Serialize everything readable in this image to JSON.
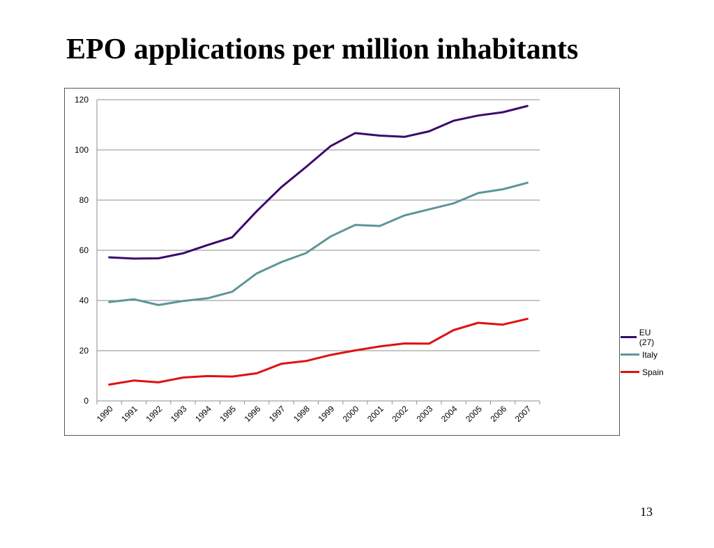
{
  "slide": {
    "title": "EPO applications per million inhabitants",
    "page_number": "13"
  },
  "chart_data": {
    "type": "line",
    "title": "",
    "xlabel": "",
    "ylabel": "",
    "x": [
      "1990",
      "1991",
      "1992",
      "1993",
      "1994",
      "1995",
      "1996",
      "1997",
      "1998",
      "1999",
      "2000",
      "2001",
      "2002",
      "2003",
      "2004",
      "2005",
      "2006",
      "2007"
    ],
    "ylim": [
      0,
      120
    ],
    "yticks": [
      0,
      20,
      40,
      60,
      80,
      100,
      120
    ],
    "grid": true,
    "legend_position": "right",
    "series": [
      {
        "name": "EU (27)",
        "color": "#3b0a6b",
        "values": [
          57.2,
          56.7,
          56.8,
          58.8,
          62.1,
          65.2,
          75.6,
          85.2,
          93.2,
          101.5,
          106.7,
          105.7,
          105.2,
          107.4,
          111.6,
          113.7,
          115.0,
          117.5
        ]
      },
      {
        "name": "Italy",
        "color": "#5e9599",
        "values": [
          39.4,
          40.5,
          38.2,
          39.8,
          40.9,
          43.5,
          50.8,
          55.3,
          58.9,
          65.5,
          70.1,
          69.7,
          73.9,
          76.3,
          78.7,
          82.8,
          84.3,
          86.9
        ]
      },
      {
        "name": "Spain",
        "color": "#e01010",
        "values": [
          6.5,
          8.1,
          7.4,
          9.3,
          9.9,
          9.7,
          11.0,
          14.8,
          15.9,
          18.3,
          20.1,
          21.7,
          22.9,
          22.8,
          28.2,
          31.1,
          30.4,
          32.7
        ]
      }
    ]
  }
}
